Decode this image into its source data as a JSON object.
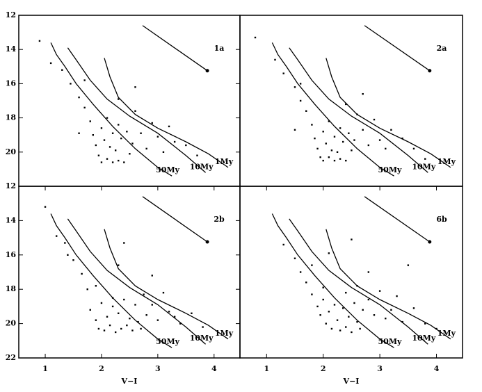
{
  "chart_data": [
    {
      "type": "scatter",
      "label": "1a",
      "color": "#000000",
      "xlim": [
        0.53,
        4.46
      ],
      "ylim": [
        22,
        12
      ],
      "yticks": [
        12,
        14,
        16,
        18,
        20
      ],
      "scatter": {
        "x": [
          0.9,
          1.1,
          1.3,
          1.45,
          1.6,
          1.7,
          1.8,
          1.85,
          1.9,
          1.95,
          2.0,
          2.0,
          2.05,
          2.1,
          2.1,
          2.15,
          2.2,
          2.2,
          2.25,
          2.3,
          2.3,
          2.35,
          2.4,
          2.45,
          2.5,
          2.55,
          2.6,
          2.7,
          2.8,
          2.9,
          3.0,
          3.1,
          3.2,
          3.3,
          3.5,
          3.7,
          1.7,
          2.3,
          1.6,
          2.6
        ],
        "y": [
          13.5,
          14.8,
          15.2,
          16.0,
          16.8,
          17.4,
          18.2,
          19.0,
          19.6,
          20.2,
          18.6,
          20.6,
          19.3,
          18.0,
          20.4,
          19.7,
          18.9,
          20.6,
          19.9,
          18.4,
          20.5,
          19.2,
          20.6,
          18.8,
          20.1,
          19.5,
          17.6,
          18.9,
          19.8,
          18.3,
          19.1,
          20.0,
          18.5,
          19.4,
          19.6,
          20.2,
          15.8,
          16.9,
          18.9,
          16.2
        ]
      },
      "lines": [
        {
          "name": "1My",
          "x": [
            2.05,
            2.15,
            2.3,
            2.6,
            3.0,
            3.5,
            3.9,
            4.25
          ],
          "y": [
            14.5,
            15.6,
            16.8,
            17.8,
            18.6,
            19.4,
            20.1,
            20.9
          ]
        },
        {
          "name": "10My",
          "x": [
            1.4,
            1.55,
            1.8,
            2.1,
            2.5,
            3.0,
            3.5,
            3.85
          ],
          "y": [
            13.9,
            14.6,
            15.8,
            16.9,
            17.9,
            18.9,
            20.2,
            21.2
          ]
        },
        {
          "name": "50My",
          "x": [
            1.1,
            1.2,
            1.35,
            1.55,
            1.85,
            2.2,
            2.6,
            3.0,
            3.25
          ],
          "y": [
            13.6,
            14.3,
            15.0,
            16.0,
            17.2,
            18.5,
            19.8,
            20.9,
            21.4
          ]
        }
      ],
      "arrow": {
        "x": [
          2.73,
          3.88
        ],
        "y": [
          12.6,
          15.24
        ]
      }
    },
    {
      "type": "scatter",
      "label": "2a",
      "color": "#000000",
      "xlim": [
        0.53,
        4.46
      ],
      "ylim": [
        22,
        12
      ],
      "scatter": {
        "x": [
          0.8,
          1.15,
          1.3,
          1.5,
          1.6,
          1.7,
          1.8,
          1.85,
          1.9,
          1.95,
          2.0,
          2.0,
          2.05,
          2.1,
          2.1,
          2.15,
          2.2,
          2.2,
          2.25,
          2.3,
          2.3,
          2.35,
          2.4,
          2.45,
          2.5,
          2.55,
          2.6,
          2.7,
          2.8,
          2.9,
          3.0,
          3.1,
          3.2,
          3.4,
          3.6,
          3.8,
          1.6,
          2.4,
          1.5,
          2.7
        ],
        "y": [
          13.3,
          14.6,
          15.4,
          16.2,
          17.0,
          17.6,
          18.4,
          19.2,
          19.8,
          20.3,
          18.8,
          20.5,
          19.5,
          18.2,
          20.3,
          19.9,
          19.1,
          20.5,
          20.0,
          18.6,
          20.4,
          19.4,
          20.5,
          18.9,
          19.9,
          19.3,
          17.8,
          18.7,
          19.6,
          18.1,
          19.3,
          19.8,
          18.7,
          19.2,
          19.8,
          20.4,
          16.0,
          17.2,
          18.7,
          16.6
        ]
      },
      "lines": [
        {
          "name": "1My",
          "x": [
            2.05,
            2.15,
            2.3,
            2.6,
            3.0,
            3.5,
            3.9,
            4.25
          ],
          "y": [
            14.5,
            15.6,
            16.8,
            17.8,
            18.6,
            19.4,
            20.1,
            20.9
          ]
        },
        {
          "name": "10My",
          "x": [
            1.4,
            1.55,
            1.8,
            2.1,
            2.5,
            3.0,
            3.5,
            3.85
          ],
          "y": [
            13.9,
            14.6,
            15.8,
            16.9,
            17.9,
            18.9,
            20.2,
            21.2
          ]
        },
        {
          "name": "50My",
          "x": [
            1.1,
            1.2,
            1.35,
            1.55,
            1.85,
            2.2,
            2.6,
            3.0,
            3.25
          ],
          "y": [
            13.6,
            14.3,
            15.0,
            16.0,
            17.2,
            18.5,
            19.8,
            20.9,
            21.4
          ]
        }
      ],
      "arrow": {
        "x": [
          2.73,
          3.88
        ],
        "y": [
          12.6,
          15.24
        ]
      }
    },
    {
      "type": "scatter",
      "label": "2b",
      "color": "#000000",
      "xlim": [
        0.53,
        4.46
      ],
      "ylim": [
        22,
        12
      ],
      "yticks": [
        12,
        14,
        16,
        18,
        20,
        22
      ],
      "xticks": [
        1,
        2,
        3,
        4
      ],
      "xlabel": "V−I",
      "scatter": {
        "x": [
          1.0,
          1.2,
          1.35,
          1.5,
          1.65,
          1.75,
          1.8,
          1.9,
          1.95,
          2.0,
          2.05,
          2.1,
          2.15,
          2.2,
          2.25,
          2.3,
          2.35,
          2.4,
          2.45,
          2.5,
          2.55,
          2.6,
          2.65,
          2.7,
          2.75,
          2.8,
          2.9,
          3.0,
          3.1,
          3.2,
          3.3,
          3.4,
          3.6,
          3.8,
          2.4,
          2.3,
          1.4,
          2.9,
          1.9,
          2.2
        ],
        "y": [
          13.2,
          14.9,
          15.3,
          16.3,
          17.1,
          18.0,
          19.2,
          19.8,
          20.3,
          18.8,
          20.4,
          19.6,
          20.1,
          19.0,
          20.5,
          19.4,
          20.3,
          18.6,
          20.1,
          19.7,
          20.4,
          18.9,
          19.9,
          20.3,
          18.3,
          19.5,
          18.9,
          19.8,
          18.2,
          19.3,
          19.6,
          20.0,
          19.4,
          20.2,
          15.3,
          16.6,
          16.0,
          17.2,
          17.8,
          18.5
        ]
      },
      "lines": [
        {
          "name": "1My",
          "x": [
            2.05,
            2.15,
            2.3,
            2.6,
            3.0,
            3.5,
            3.9,
            4.25
          ],
          "y": [
            14.5,
            15.6,
            16.8,
            17.8,
            18.6,
            19.4,
            20.1,
            20.9
          ]
        },
        {
          "name": "10My",
          "x": [
            1.4,
            1.55,
            1.8,
            2.1,
            2.5,
            3.0,
            3.5,
            3.85
          ],
          "y": [
            13.9,
            14.6,
            15.8,
            16.9,
            17.9,
            18.9,
            20.2,
            21.2
          ]
        },
        {
          "name": "50My",
          "x": [
            1.1,
            1.2,
            1.35,
            1.55,
            1.85,
            2.2,
            2.6,
            3.0,
            3.25
          ],
          "y": [
            13.6,
            14.3,
            15.0,
            16.0,
            17.2,
            18.5,
            19.8,
            20.9,
            21.4
          ]
        }
      ],
      "arrow": {
        "x": [
          2.73,
          3.88
        ],
        "y": [
          12.6,
          15.24
        ]
      }
    },
    {
      "type": "scatter",
      "label": "6b",
      "color": "#000000",
      "xlim": [
        0.53,
        4.46
      ],
      "ylim": [
        22,
        12
      ],
      "xticks": [
        1,
        2,
        3,
        4
      ],
      "xlabel": "V−I",
      "scatter": {
        "x": [
          1.3,
          1.5,
          1.6,
          1.7,
          1.8,
          1.9,
          1.95,
          2.0,
          2.05,
          2.1,
          2.15,
          2.2,
          2.25,
          2.3,
          2.35,
          2.4,
          2.45,
          2.5,
          2.55,
          2.6,
          2.65,
          2.7,
          2.8,
          2.9,
          3.0,
          3.1,
          3.2,
          3.3,
          3.4,
          3.6,
          3.8,
          4.0,
          2.5,
          2.1,
          1.8,
          2.8,
          3.5,
          2.6,
          2.0,
          2.4
        ],
        "y": [
          15.4,
          16.2,
          17.0,
          17.6,
          18.3,
          19.0,
          19.5,
          18.6,
          20.0,
          19.3,
          20.3,
          18.9,
          19.8,
          20.4,
          19.1,
          20.2,
          19.6,
          20.5,
          18.8,
          19.9,
          20.3,
          19.2,
          18.6,
          19.5,
          18.1,
          19.7,
          19.2,
          18.4,
          19.9,
          19.1,
          20.0,
          20.3,
          15.1,
          15.9,
          16.6,
          17.0,
          16.6,
          17.8,
          17.9,
          18.2
        ]
      },
      "lines": [
        {
          "name": "1My",
          "x": [
            2.05,
            2.15,
            2.3,
            2.6,
            3.0,
            3.5,
            3.9,
            4.25
          ],
          "y": [
            14.5,
            15.6,
            16.8,
            17.8,
            18.6,
            19.4,
            20.1,
            20.9
          ]
        },
        {
          "name": "10My",
          "x": [
            1.4,
            1.55,
            1.8,
            2.1,
            2.5,
            3.0,
            3.5,
            3.85
          ],
          "y": [
            13.9,
            14.6,
            15.8,
            16.9,
            17.9,
            18.9,
            20.2,
            21.2
          ]
        },
        {
          "name": "50My",
          "x": [
            1.1,
            1.2,
            1.35,
            1.55,
            1.85,
            2.2,
            2.6,
            3.0,
            3.25
          ],
          "y": [
            13.6,
            14.3,
            15.0,
            16.0,
            17.2,
            18.5,
            19.8,
            20.9,
            21.4
          ]
        }
      ],
      "arrow": {
        "x": [
          2.73,
          3.88
        ],
        "y": [
          12.6,
          15.24
        ]
      }
    }
  ]
}
